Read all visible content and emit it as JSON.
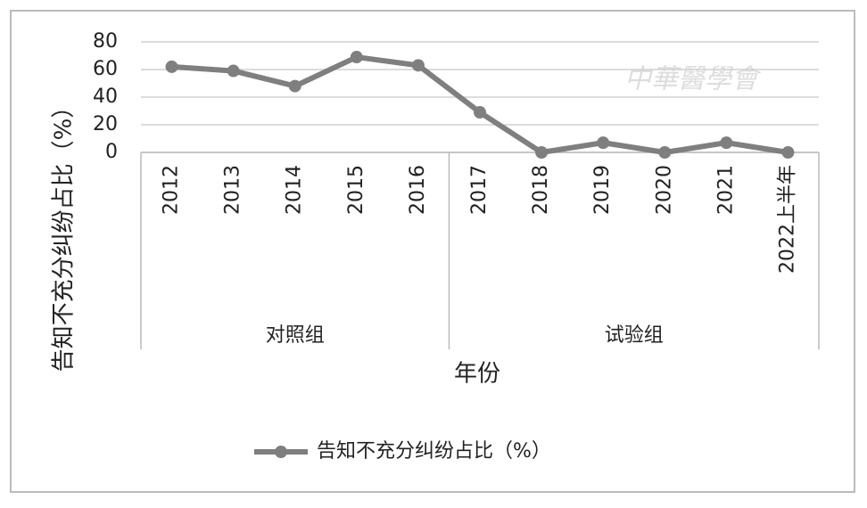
{
  "chart_data": {
    "type": "line",
    "categories": [
      "2012",
      "2013",
      "2014",
      "2015",
      "2016",
      "2017",
      "2018",
      "2019",
      "2020",
      "2021",
      "2022上半年"
    ],
    "category_groups": [
      {
        "name": "对照组",
        "span": 5
      },
      {
        "name": "试验组",
        "span": 6
      }
    ],
    "series": [
      {
        "name": "告知不充分纠纷占比（%）",
        "color": "#7f7f7f",
        "values": [
          62,
          59,
          48,
          69,
          63,
          29,
          0,
          7,
          0,
          7,
          0
        ]
      }
    ],
    "ylim": [
      0,
      80
    ],
    "yticks": [
      0,
      20,
      40,
      60,
      80
    ],
    "grid": true,
    "y_label": "告知不充分纠纷占比（%）",
    "x_label": "年份",
    "legend": "bottom",
    "watermark": "中華醫學會"
  }
}
